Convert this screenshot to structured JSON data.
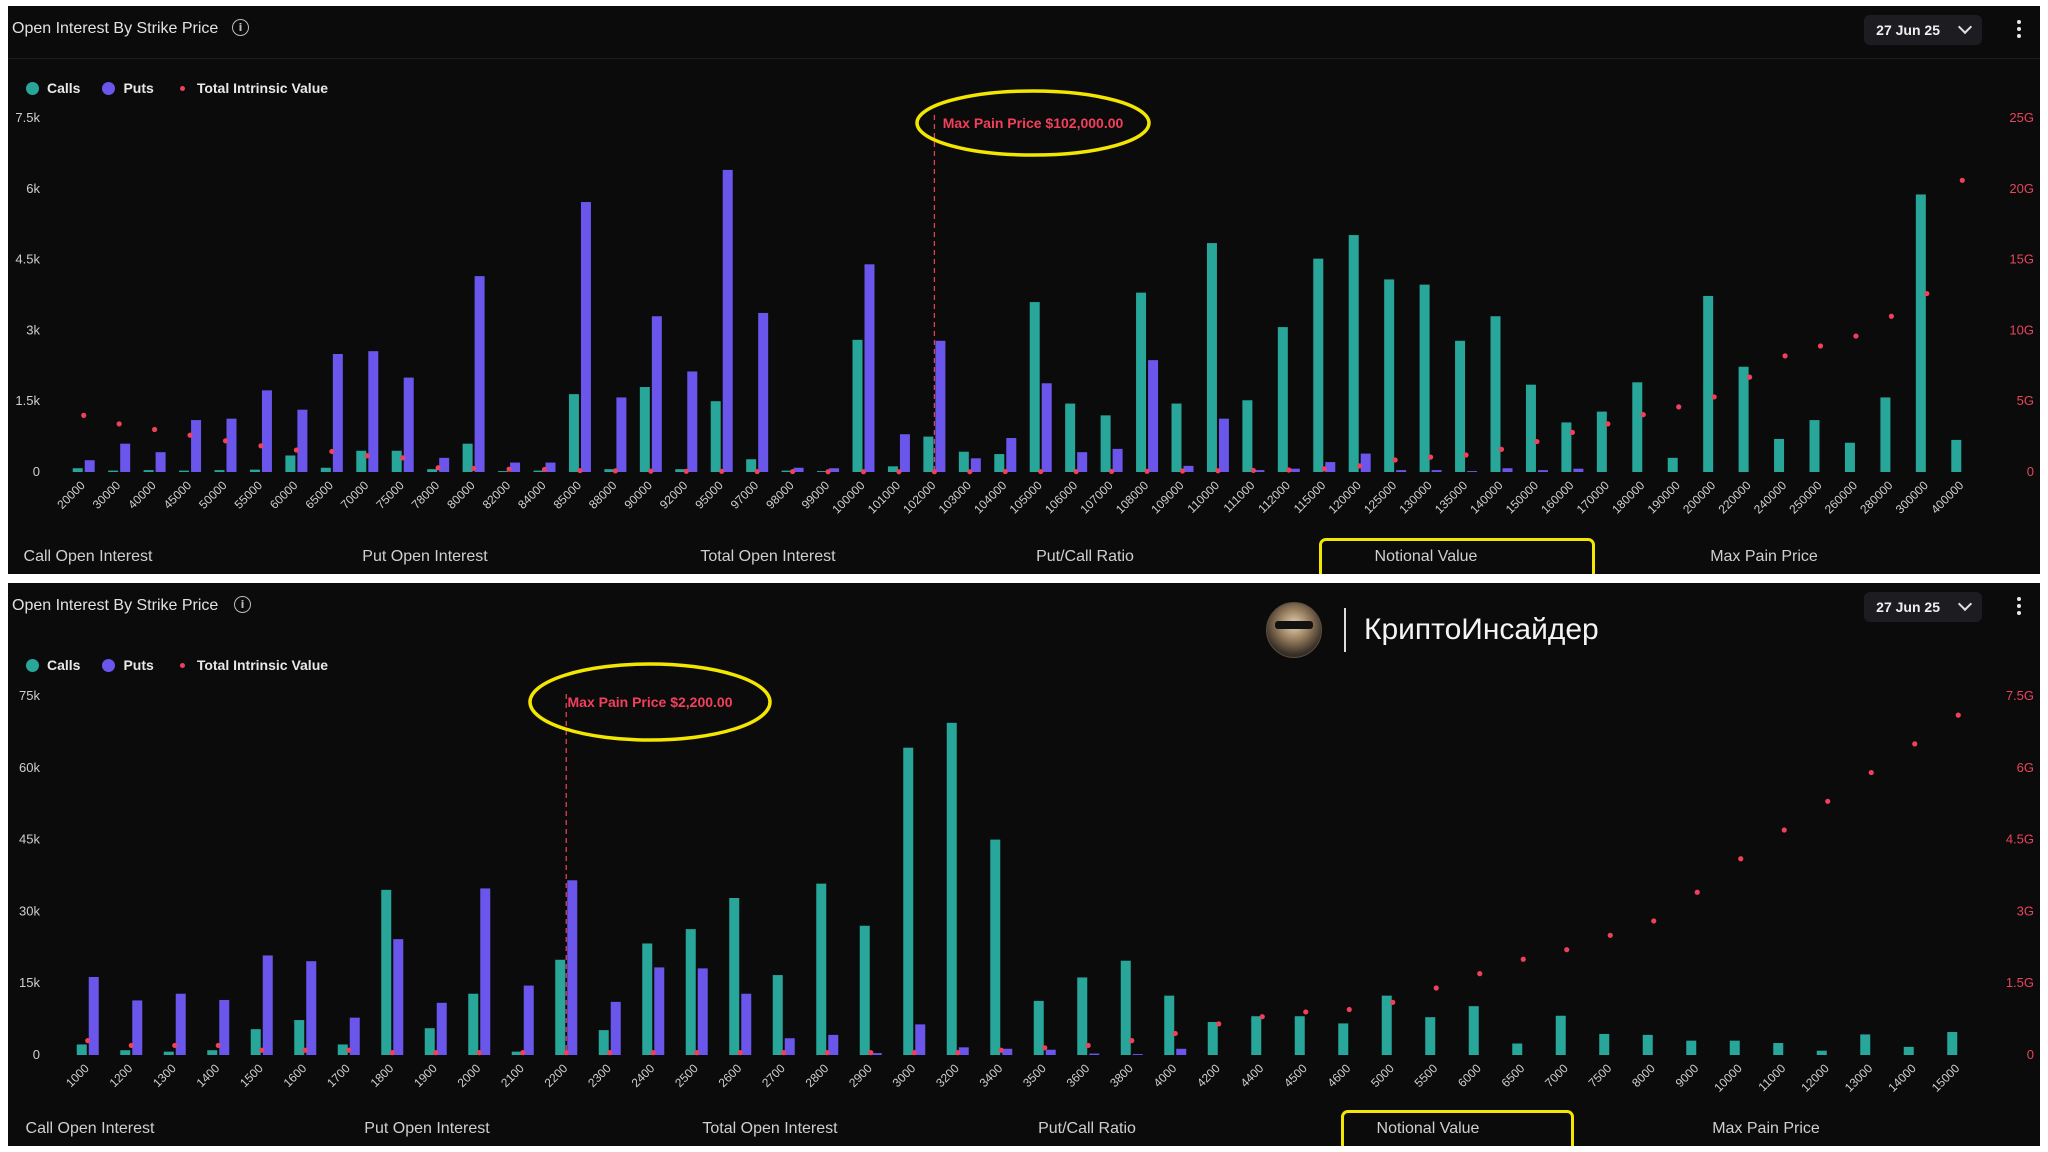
{
  "panels": [
    {
      "title": "Open Interest By Strike Price",
      "date_selector": "27 Jun 25",
      "legend": {
        "calls": "Calls",
        "puts": "Puts",
        "tiv": "Total Intrinsic Value"
      },
      "max_pain_label": "Max Pain Price $102,000.00",
      "tabs": [
        "Call Open Interest",
        "Put Open Interest",
        "Total Open Interest",
        "Put/Call Ratio",
        "Notional Value",
        "Max Pain Price"
      ],
      "highlighted_tab": "Notional Value"
    },
    {
      "title": "Open Interest By Strike Price",
      "date_selector": "27 Jun 25",
      "legend": {
        "calls": "Calls",
        "puts": "Puts",
        "tiv": "Total Intrinsic Value"
      },
      "max_pain_label": "Max Pain Price $2,200.00",
      "tabs": [
        "Call Open Interest",
        "Put Open Interest",
        "Total Open Interest",
        "Put/Call Ratio",
        "Notional Value",
        "Max Pain Price"
      ],
      "highlighted_tab": "Notional Value"
    }
  ],
  "brand": {
    "name": "КриптоИнсайдер"
  },
  "colors": {
    "calls": "#27a699",
    "puts": "#6a56ea",
    "tiv": "#f0405a",
    "highlight": "#f3e600",
    "background": "#0b0b0c"
  },
  "chart_data": [
    {
      "type": "bar",
      "title": "Open Interest By Strike Price",
      "categories": [
        "20000",
        "30000",
        "40000",
        "45000",
        "50000",
        "55000",
        "60000",
        "65000",
        "70000",
        "75000",
        "78000",
        "80000",
        "82000",
        "84000",
        "85000",
        "88000",
        "90000",
        "92000",
        "95000",
        "97000",
        "98000",
        "99000",
        "100000",
        "101000",
        "102000",
        "103000",
        "104000",
        "105000",
        "106000",
        "107000",
        "108000",
        "109000",
        "110000",
        "111000",
        "112000",
        "115000",
        "120000",
        "125000",
        "130000",
        "135000",
        "140000",
        "150000",
        "160000",
        "170000",
        "180000",
        "190000",
        "200000",
        "220000",
        "240000",
        "250000",
        "260000",
        "280000",
        "300000",
        "400000"
      ],
      "series": [
        {
          "name": "Calls",
          "axis": "left",
          "values": [
            80,
            30,
            40,
            30,
            40,
            50,
            350,
            90,
            450,
            450,
            60,
            600,
            20,
            30,
            1650,
            60,
            1800,
            60,
            1500,
            270,
            30,
            20,
            2800,
            120,
            750,
            430,
            380,
            3600,
            1450,
            1200,
            3800,
            1450,
            4850,
            1520,
            3070,
            4520,
            5020,
            4080,
            3970,
            2780,
            3300,
            1850,
            1050,
            1280,
            1900,
            300,
            3730,
            2230,
            700,
            1100,
            620,
            1580,
            5880,
            680
          ]
        },
        {
          "name": "Puts",
          "axis": "left",
          "values": [
            250,
            600,
            420,
            1100,
            1130,
            1730,
            1320,
            2500,
            2560,
            2000,
            300,
            4150,
            200,
            200,
            5720,
            1580,
            3300,
            2130,
            6400,
            3370,
            90,
            80,
            4400,
            800,
            2780,
            290,
            720,
            1880,
            420,
            490,
            2370,
            130,
            1130,
            40,
            70,
            210,
            390,
            40,
            40,
            20,
            80,
            40,
            70,
            0,
            0,
            0,
            0,
            0,
            0,
            0,
            0,
            0,
            0,
            0
          ]
        },
        {
          "name": "Total Intrinsic Value",
          "axis": "right",
          "values": [
            40,
            34,
            30,
            26,
            22,
            18.5,
            15.5,
            14.5,
            11.5,
            10,
            3,
            2.5,
            2,
            1.8,
            1,
            0.8,
            0.6,
            0.5,
            0.5,
            0.3,
            0.3,
            0.2,
            0.2,
            0.2,
            0.2,
            0.2,
            0.3,
            0.3,
            0.3,
            0.4,
            0.5,
            0.7,
            0.9,
            1.1,
            1.4,
            2.2,
            4.3,
            8.5,
            10.5,
            12,
            16,
            21.5,
            28,
            34,
            40.5,
            46,
            53,
            67,
            82,
            89,
            96,
            110,
            126,
            206
          ]
        }
      ],
      "y_left": {
        "min": 0,
        "max": 7500,
        "ticks": [
          "0",
          "1.5k",
          "3k",
          "4.5k",
          "6k",
          "7.5k"
        ]
      },
      "y_right": {
        "min": 0,
        "max": 250,
        "ticks": [
          "0",
          "5G",
          "10G",
          "15G",
          "20G",
          "25G"
        ]
      },
      "max_pain_strike": "102000",
      "grid": false,
      "legend_position": "top-left"
    },
    {
      "type": "bar",
      "title": "Open Interest By Strike Price",
      "categories": [
        "1000",
        "1200",
        "1300",
        "1400",
        "1500",
        "1600",
        "1700",
        "1800",
        "1900",
        "2000",
        "2100",
        "2200",
        "2300",
        "2400",
        "2500",
        "2600",
        "2700",
        "2800",
        "2900",
        "3000",
        "3200",
        "3400",
        "3500",
        "3600",
        "3800",
        "4000",
        "4200",
        "4400",
        "4500",
        "4600",
        "5000",
        "5500",
        "6000",
        "6500",
        "7000",
        "7500",
        "8000",
        "9000",
        "10000",
        "11000",
        "12000",
        "13000",
        "14000",
        "15000"
      ],
      "series": [
        {
          "name": "Calls",
          "axis": "left",
          "values": [
            2200,
            1000,
            700,
            1000,
            5400,
            7300,
            2200,
            34500,
            5600,
            12800,
            700,
            19900,
            5200,
            23300,
            26300,
            32800,
            16700,
            35800,
            27000,
            64200,
            69400,
            45000,
            11300,
            16200,
            19700,
            12400,
            6900,
            8100,
            8100,
            6600,
            12400,
            7900,
            10200,
            2400,
            8200,
            4400,
            4200,
            3000,
            3000,
            2500,
            900,
            4300,
            1700,
            4800
          ]
        },
        {
          "name": "Puts",
          "axis": "left",
          "values": [
            16300,
            11400,
            12800,
            11500,
            20800,
            19600,
            7800,
            24200,
            10900,
            34800,
            14500,
            36500,
            11100,
            18300,
            18100,
            12800,
            3500,
            4200,
            400,
            6400,
            1600,
            1300,
            1100,
            300,
            200,
            1300,
            0,
            0,
            0,
            0,
            0,
            0,
            0,
            0,
            0,
            0,
            0,
            0,
            0,
            0,
            0,
            0,
            0,
            0
          ]
        },
        {
          "name": "Total Intrinsic Value",
          "axis": "right",
          "values": [
            0.3,
            0.2,
            0.2,
            0.2,
            0.1,
            0.1,
            0.1,
            0.05,
            0.05,
            0.05,
            0.05,
            0.05,
            0.05,
            0.05,
            0.05,
            0.05,
            0.05,
            0.05,
            0.05,
            0.05,
            0.05,
            0.1,
            0.15,
            0.2,
            0.3,
            0.45,
            0.65,
            0.8,
            0.9,
            0.95,
            1.1,
            1.4,
            1.7,
            2,
            2.2,
            2.5,
            2.8,
            3.4,
            4.1,
            4.7,
            5.3,
            5.9,
            6.5,
            7.1
          ]
        }
      ],
      "y_left": {
        "min": 0,
        "max": 75000,
        "ticks": [
          "0",
          "15k",
          "30k",
          "45k",
          "60k",
          "75k"
        ]
      },
      "y_right": {
        "min": 0,
        "max": 7.5,
        "ticks": [
          "0",
          "1.5G",
          "3G",
          "4.5G",
          "6G",
          "7.5G"
        ]
      },
      "max_pain_strike": "2200",
      "grid": false,
      "legend_position": "top-left"
    }
  ]
}
